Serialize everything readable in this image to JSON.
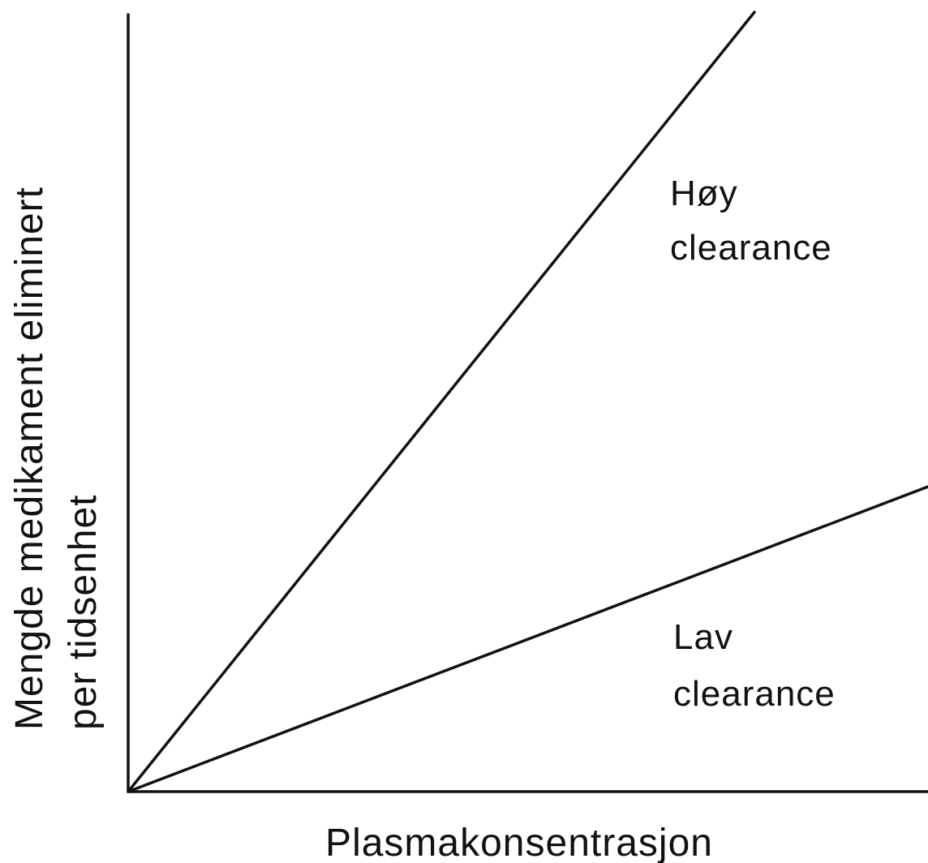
{
  "x_axis_label": "Plasmakonsentrasjon",
  "y_axis_label": [
    "Mengde medikament eliminert",
    "per tidsenhet"
  ],
  "annotations": [
    [
      "Høy",
      "clearance"
    ],
    [
      "Lav",
      "clearance"
    ]
  ]
}
